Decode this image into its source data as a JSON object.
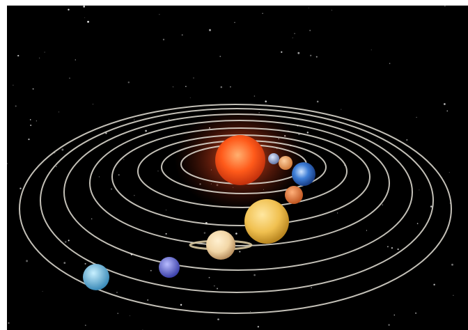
{
  "image": {
    "background_color": "#000000",
    "frame_color": "#ffffff",
    "orbit_color": "#e6e2d8"
  },
  "bodies": [
    {
      "name": "sun",
      "color": "#ff5a1a"
    },
    {
      "name": "mercury",
      "color": "#8fa3c7"
    },
    {
      "name": "venus",
      "color": "#f0a060"
    },
    {
      "name": "earth",
      "color": "#3d7dd6"
    },
    {
      "name": "mars",
      "color": "#d9703a"
    },
    {
      "name": "jupiter",
      "color": "#f0c050"
    },
    {
      "name": "saturn",
      "color": "#f2d6a6"
    },
    {
      "name": "uranus",
      "color": "#6a6fd6"
    },
    {
      "name": "neptune",
      "color": "#5fb4d9"
    }
  ]
}
